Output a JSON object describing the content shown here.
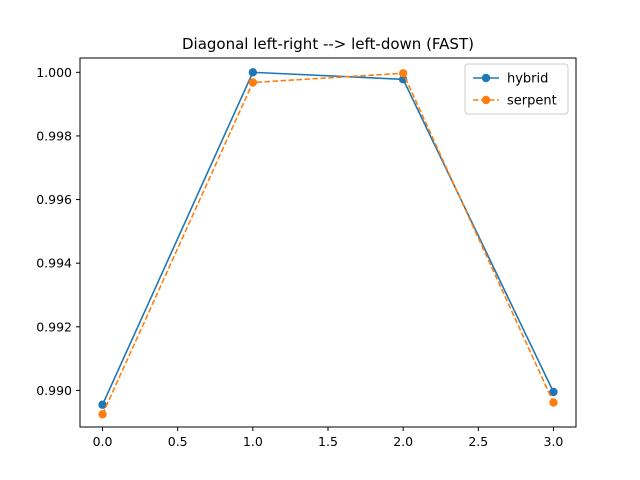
{
  "chart_data": {
    "type": "line",
    "title": "Diagonal left-right --> left-down (FAST)",
    "xlabel": "",
    "ylabel": "",
    "x": [
      0,
      1,
      2,
      3
    ],
    "xlim": [
      -0.15,
      3.15
    ],
    "ylim": [
      0.98885,
      1.00045
    ],
    "xticks": [
      0.0,
      0.5,
      1.0,
      1.5,
      2.0,
      2.5,
      3.0
    ],
    "xtick_labels": [
      "0.0",
      "0.5",
      "1.0",
      "1.5",
      "2.0",
      "2.5",
      "3.0"
    ],
    "yticks": [
      0.99,
      0.992,
      0.994,
      0.996,
      0.998,
      1.0
    ],
    "ytick_labels": [
      "0.990",
      "0.992",
      "0.994",
      "0.996",
      "0.998",
      "1.000"
    ],
    "grid": false,
    "legend_position": "top-right",
    "series": [
      {
        "name": "hybrid",
        "values": [
          0.98955,
          1.0,
          0.99978,
          0.98995
        ],
        "color": "#1f77b4",
        "linestyle": "solid",
        "marker": "circle"
      },
      {
        "name": "serpent",
        "values": [
          0.98925,
          0.99968,
          0.99997,
          0.98962
        ],
        "color": "#ff7f0e",
        "linestyle": "dashed",
        "marker": "circle"
      }
    ]
  }
}
